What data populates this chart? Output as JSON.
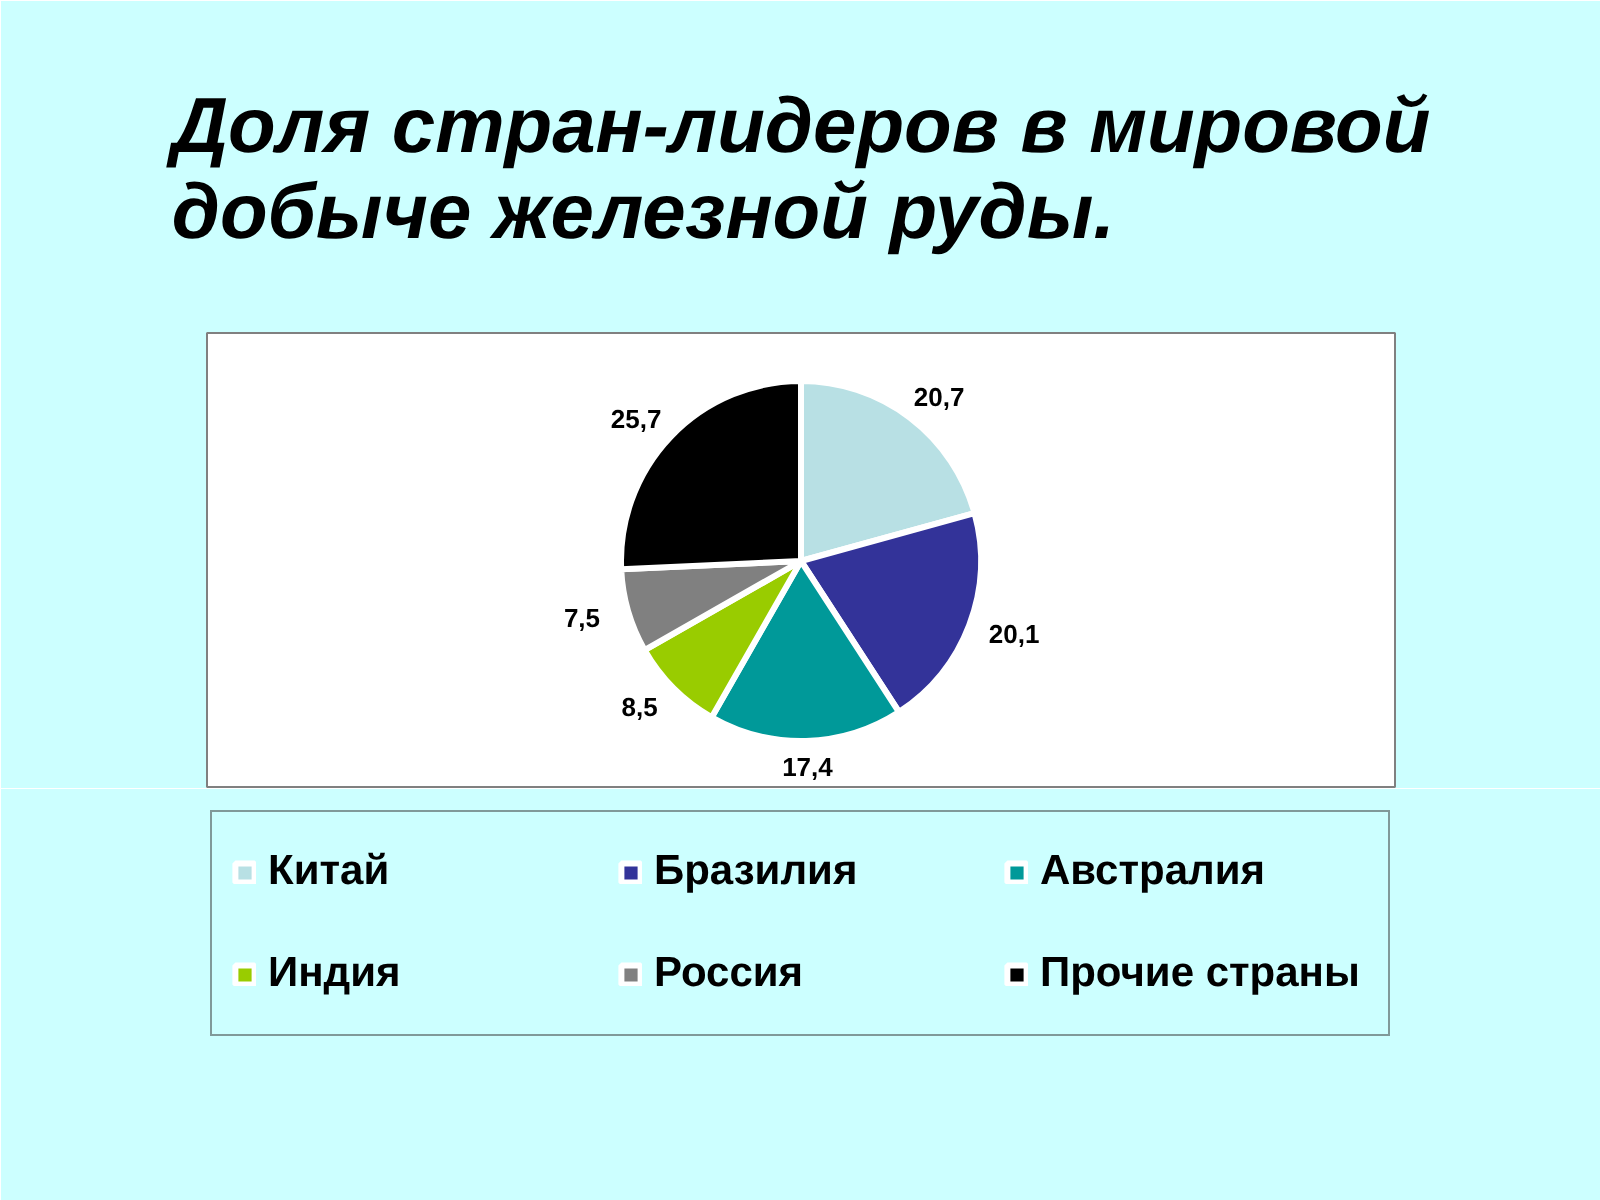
{
  "chart_data": {
    "type": "pie",
    "title": "Доля стран-лидеров в мировой добыче железной руды.",
    "categories": [
      "Китай",
      "Бразилия",
      "Австралия",
      "Индия",
      "Россия",
      "Прочие страны"
    ],
    "values": [
      20.7,
      20.1,
      17.4,
      8.5,
      7.5,
      25.7
    ],
    "colors": [
      "#b8e0e4",
      "#333399",
      "#009999",
      "#99cc00",
      "#808080",
      "#000000"
    ],
    "value_labels": [
      "20,7",
      "20,1",
      "17,4",
      "8,5",
      "7,5",
      "25,7"
    ],
    "legend": "bottom"
  }
}
